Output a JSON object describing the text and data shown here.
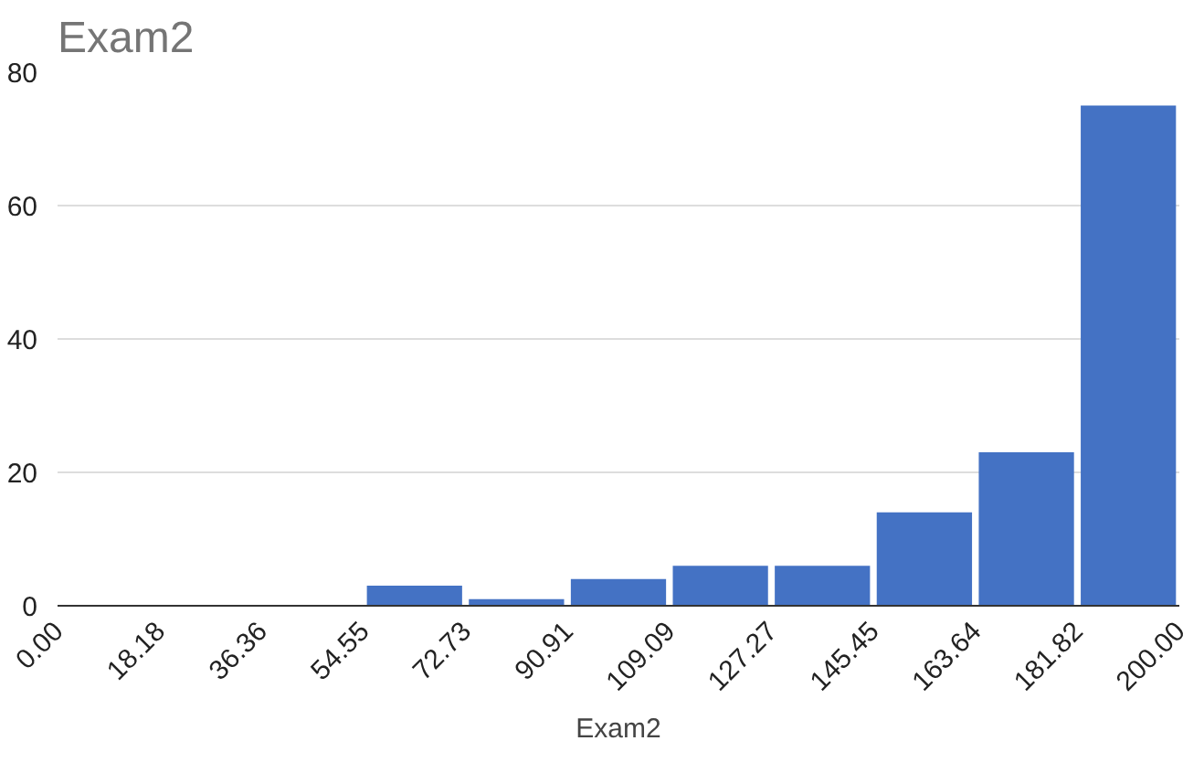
{
  "chart_data": {
    "type": "histogram",
    "title": "Exam2",
    "xlabel": "Exam2",
    "bins": [
      0,
      18.18,
      36.36,
      54.55,
      72.73,
      90.91,
      109.09,
      127.27,
      145.45,
      163.64,
      181.82,
      200
    ],
    "values": [
      0,
      0,
      0,
      3,
      1,
      4,
      6,
      6,
      14,
      23,
      75
    ],
    "color": "#4472c4",
    "xlim": [
      0,
      200
    ],
    "xticks": [
      {
        "value": 0,
        "label": "0.00"
      },
      {
        "value": 18.18,
        "label": "18.18"
      },
      {
        "value": 36.36,
        "label": "36.36"
      },
      {
        "value": 54.55,
        "label": "54.55"
      },
      {
        "value": 72.73,
        "label": "72.73"
      },
      {
        "value": 90.91,
        "label": "90.91"
      },
      {
        "value": 109.09,
        "label": "109.09"
      },
      {
        "value": 127.27,
        "label": "127.27"
      },
      {
        "value": 145.45,
        "label": "145.45"
      },
      {
        "value": 163.64,
        "label": "163.64"
      },
      {
        "value": 181.82,
        "label": "181.82"
      },
      {
        "value": 200,
        "label": "200.00"
      }
    ],
    "ylim": [
      0,
      80
    ],
    "yticks": [
      0,
      20,
      40,
      60,
      80
    ],
    "grid": "y"
  }
}
